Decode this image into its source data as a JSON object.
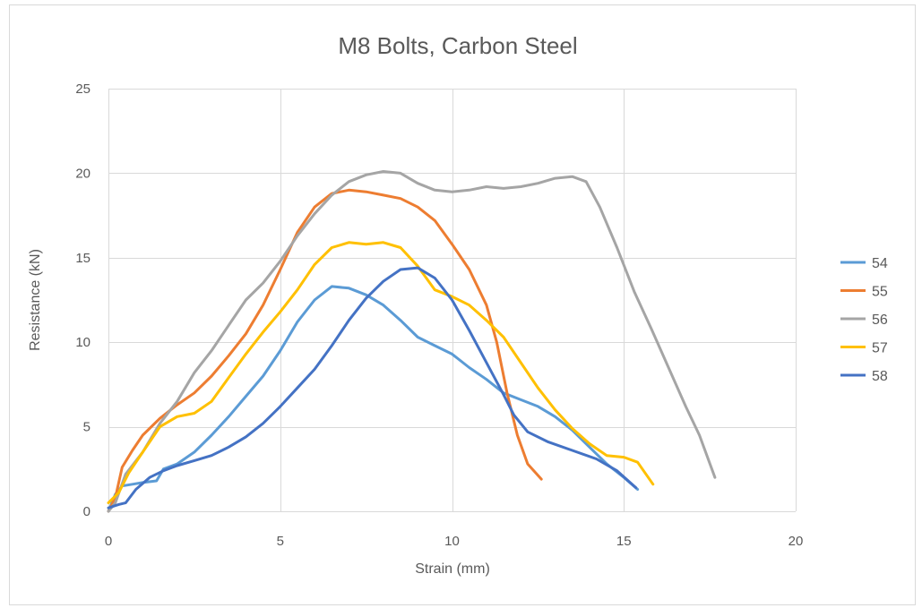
{
  "chart_data": {
    "type": "line",
    "title": "M8 Bolts, Carbon Steel",
    "xlabel": "Strain (mm)",
    "ylabel": "Resistance (kN)",
    "xlim": [
      0,
      20
    ],
    "ylim": [
      0,
      25
    ],
    "xticks": [
      "0",
      "5",
      "10",
      "15",
      "20"
    ],
    "yticks": [
      "0",
      "5",
      "10",
      "15",
      "20",
      "25"
    ],
    "grid": true,
    "legend_position": "right",
    "series": [
      {
        "name": "54",
        "color": "#5b9bd5",
        "points": [
          [
            0,
            0
          ],
          [
            0.2,
            1.0
          ],
          [
            0.4,
            1.5
          ],
          [
            0.7,
            1.6
          ],
          [
            1.0,
            1.7
          ],
          [
            1.4,
            1.8
          ],
          [
            1.6,
            2.5
          ],
          [
            2.0,
            2.8
          ],
          [
            2.5,
            3.5
          ],
          [
            3.0,
            4.5
          ],
          [
            3.5,
            5.6
          ],
          [
            4.0,
            6.8
          ],
          [
            4.5,
            8.0
          ],
          [
            5.0,
            9.5
          ],
          [
            5.5,
            11.2
          ],
          [
            6.0,
            12.5
          ],
          [
            6.5,
            13.3
          ],
          [
            7.0,
            13.2
          ],
          [
            7.5,
            12.8
          ],
          [
            8.0,
            12.2
          ],
          [
            8.5,
            11.3
          ],
          [
            9.0,
            10.3
          ],
          [
            9.5,
            9.8
          ],
          [
            10.0,
            9.3
          ],
          [
            10.5,
            8.5
          ],
          [
            11.0,
            7.8
          ],
          [
            11.5,
            7.0
          ],
          [
            12.0,
            6.6
          ],
          [
            12.5,
            6.2
          ],
          [
            13.0,
            5.6
          ],
          [
            13.5,
            4.8
          ],
          [
            14.0,
            3.8
          ],
          [
            14.5,
            2.8
          ],
          [
            15.0,
            2.0
          ],
          [
            15.4,
            1.3
          ]
        ]
      },
      {
        "name": "55",
        "color": "#ed7d31",
        "points": [
          [
            0,
            0
          ],
          [
            0.2,
            0.8
          ],
          [
            0.4,
            2.6
          ],
          [
            0.7,
            3.6
          ],
          [
            1.0,
            4.5
          ],
          [
            1.5,
            5.5
          ],
          [
            2.0,
            6.3
          ],
          [
            2.5,
            7.0
          ],
          [
            3.0,
            8.0
          ],
          [
            3.5,
            9.2
          ],
          [
            4.0,
            10.5
          ],
          [
            4.5,
            12.2
          ],
          [
            5.0,
            14.3
          ],
          [
            5.5,
            16.5
          ],
          [
            6.0,
            18.0
          ],
          [
            6.5,
            18.8
          ],
          [
            7.0,
            19.0
          ],
          [
            7.5,
            18.9
          ],
          [
            8.0,
            18.7
          ],
          [
            8.5,
            18.5
          ],
          [
            9.0,
            18.0
          ],
          [
            9.5,
            17.2
          ],
          [
            10.0,
            15.8
          ],
          [
            10.5,
            14.3
          ],
          [
            11.0,
            12.2
          ],
          [
            11.3,
            10.0
          ],
          [
            11.6,
            7.0
          ],
          [
            11.9,
            4.5
          ],
          [
            12.2,
            2.8
          ],
          [
            12.6,
            1.9
          ]
        ]
      },
      {
        "name": "56",
        "color": "#a5a5a5",
        "points": [
          [
            0,
            0
          ],
          [
            0.2,
            0.5
          ],
          [
            0.5,
            2.2
          ],
          [
            1.0,
            3.5
          ],
          [
            1.5,
            5.2
          ],
          [
            2.0,
            6.5
          ],
          [
            2.5,
            8.2
          ],
          [
            3.0,
            9.5
          ],
          [
            3.5,
            11.0
          ],
          [
            4.0,
            12.5
          ],
          [
            4.5,
            13.5
          ],
          [
            5.0,
            14.8
          ],
          [
            5.5,
            16.3
          ],
          [
            6.0,
            17.6
          ],
          [
            6.5,
            18.7
          ],
          [
            7.0,
            19.5
          ],
          [
            7.5,
            19.9
          ],
          [
            8.0,
            20.1
          ],
          [
            8.5,
            20.0
          ],
          [
            9.0,
            19.4
          ],
          [
            9.5,
            19.0
          ],
          [
            10.0,
            18.9
          ],
          [
            10.5,
            19.0
          ],
          [
            11.0,
            19.2
          ],
          [
            11.5,
            19.1
          ],
          [
            12.0,
            19.2
          ],
          [
            12.5,
            19.4
          ],
          [
            13.0,
            19.7
          ],
          [
            13.5,
            19.8
          ],
          [
            13.9,
            19.5
          ],
          [
            14.3,
            18.0
          ],
          [
            14.8,
            15.6
          ],
          [
            15.3,
            13.0
          ],
          [
            15.8,
            10.8
          ],
          [
            16.3,
            8.5
          ],
          [
            16.8,
            6.2
          ],
          [
            17.2,
            4.5
          ],
          [
            17.65,
            2.0
          ]
        ]
      },
      {
        "name": "57",
        "color": "#ffc000",
        "points": [
          [
            0,
            0.5
          ],
          [
            0.3,
            1.1
          ],
          [
            0.6,
            2.3
          ],
          [
            1.0,
            3.5
          ],
          [
            1.5,
            5.0
          ],
          [
            2.0,
            5.6
          ],
          [
            2.5,
            5.8
          ],
          [
            3.0,
            6.5
          ],
          [
            3.5,
            7.9
          ],
          [
            4.0,
            9.3
          ],
          [
            4.5,
            10.6
          ],
          [
            5.0,
            11.8
          ],
          [
            5.5,
            13.1
          ],
          [
            6.0,
            14.6
          ],
          [
            6.5,
            15.6
          ],
          [
            7.0,
            15.9
          ],
          [
            7.5,
            15.8
          ],
          [
            8.0,
            15.9
          ],
          [
            8.5,
            15.6
          ],
          [
            9.0,
            14.5
          ],
          [
            9.5,
            13.1
          ],
          [
            10.0,
            12.7
          ],
          [
            10.5,
            12.2
          ],
          [
            11.0,
            11.3
          ],
          [
            11.5,
            10.3
          ],
          [
            12.0,
            8.8
          ],
          [
            12.5,
            7.3
          ],
          [
            13.0,
            6.0
          ],
          [
            13.5,
            4.9
          ],
          [
            14.0,
            4.0
          ],
          [
            14.5,
            3.3
          ],
          [
            15.0,
            3.2
          ],
          [
            15.4,
            2.9
          ],
          [
            15.85,
            1.6
          ]
        ]
      },
      {
        "name": "58",
        "color": "#4472c4",
        "points": [
          [
            0,
            0.2
          ],
          [
            0.3,
            0.4
          ],
          [
            0.5,
            0.5
          ],
          [
            0.8,
            1.3
          ],
          [
            1.2,
            2.0
          ],
          [
            1.6,
            2.4
          ],
          [
            2.0,
            2.7
          ],
          [
            2.5,
            3.0
          ],
          [
            3.0,
            3.3
          ],
          [
            3.5,
            3.8
          ],
          [
            4.0,
            4.4
          ],
          [
            4.5,
            5.2
          ],
          [
            5.0,
            6.2
          ],
          [
            5.5,
            7.3
          ],
          [
            6.0,
            8.4
          ],
          [
            6.5,
            9.8
          ],
          [
            7.0,
            11.3
          ],
          [
            7.5,
            12.6
          ],
          [
            8.0,
            13.6
          ],
          [
            8.5,
            14.3
          ],
          [
            9.0,
            14.4
          ],
          [
            9.5,
            13.8
          ],
          [
            10.0,
            12.5
          ],
          [
            10.5,
            10.7
          ],
          [
            11.0,
            8.8
          ],
          [
            11.5,
            6.9
          ],
          [
            11.8,
            5.7
          ],
          [
            12.2,
            4.7
          ],
          [
            12.8,
            4.1
          ],
          [
            13.5,
            3.6
          ],
          [
            14.2,
            3.1
          ],
          [
            14.8,
            2.4
          ],
          [
            15.35,
            1.4
          ]
        ]
      }
    ]
  }
}
